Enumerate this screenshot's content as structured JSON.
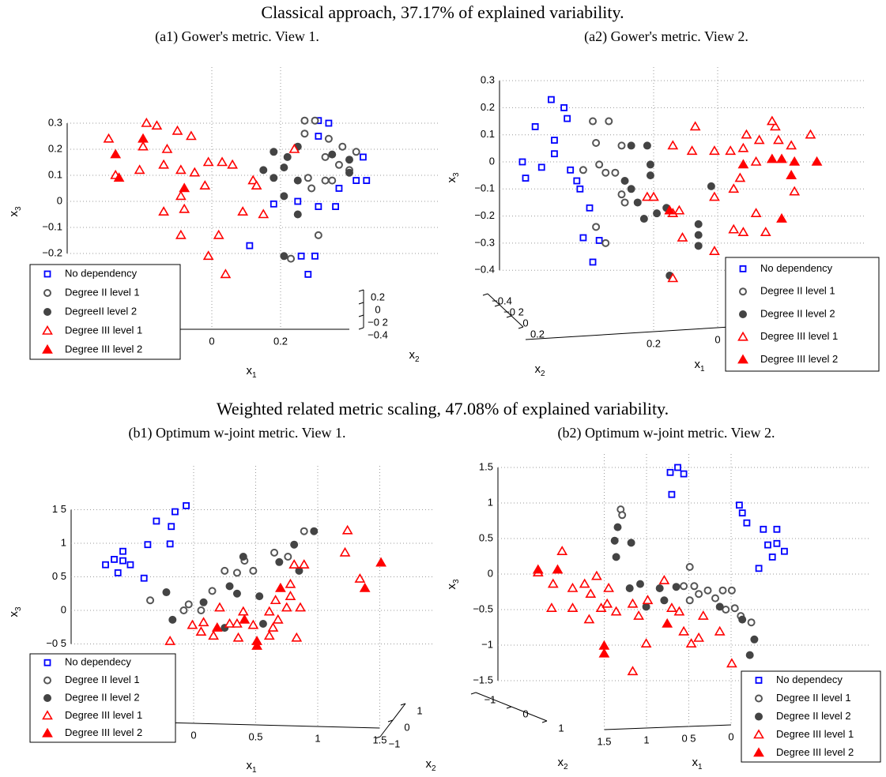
{
  "headings": [
    "Classical approach, 37.17% of explained variability.",
    "Weighted related metric scaling, 47.08% of explained variability."
  ],
  "chart_data": [
    {
      "type": "scatter3d",
      "title": "(a1) Gower's metric. View 1.",
      "xlabel": "x",
      "xlabel_sub": "1",
      "ylabel": "x",
      "ylabel_sub": "2",
      "zlabel": "x",
      "zlabel_sub": "3",
      "xlim": [
        -0.4,
        0.4
      ],
      "ylim": [
        -0.4,
        0.2
      ],
      "zlim": [
        -0.2,
        0.3
      ],
      "xticks": [
        0,
        0.2
      ],
      "yticks": [
        0.2,
        0,
        {
          "value": -0.2,
          "label": "−0 2"
        },
        {
          "value": -0.4,
          "label": "−0.4"
        }
      ],
      "zticks": [
        0.3,
        0.2,
        0.1,
        0,
        {
          "value": -0.1,
          "label": "−0.1"
        },
        {
          "value": -0.2,
          "label": "−0.2"
        }
      ],
      "grid": true,
      "series": [
        {
          "name": "No dependency",
          "color": "#0000ff",
          "marker": "square",
          "filled": false,
          "x": [
            0.31,
            0.34,
            0.31,
            0.44,
            0.45,
            0.42,
            0.37,
            0.25,
            0.18,
            0.31,
            0.36,
            0.11,
            0.26,
            0.3,
            0.28
          ],
          "values": [
            0.31,
            0.3,
            0.25,
            0.17,
            0.08,
            0.08,
            0.05,
            0,
            -0.01,
            -0.02,
            -0.02,
            -0.17,
            -0.21,
            -0.21,
            -0.28
          ]
        },
        {
          "name": "Degree II level 1",
          "color": "#555555",
          "marker": "circle",
          "filled": false,
          "x": [
            0.27,
            0.3,
            0.27,
            0.34,
            0.38,
            0.42,
            0.33,
            0.37,
            0.4,
            0.28,
            0.33,
            0.29,
            0.35,
            0.31,
            0.23
          ],
          "values": [
            0.31,
            0.31,
            0.26,
            0.24,
            0.21,
            0.19,
            0.17,
            0.14,
            0.12,
            0.09,
            0.08,
            0.05,
            0.08,
            -0.13,
            -0.22
          ]
        },
        {
          "name": "DegreeII level 2",
          "color": "#444444",
          "marker": "circle",
          "filled": true,
          "x": [
            0.18,
            0.25,
            0.22,
            0.21,
            0.15,
            0.18,
            0.4,
            0.4,
            0.35,
            0.25,
            0.21,
            0.25,
            0.21
          ],
          "values": [
            0.19,
            0.21,
            0.17,
            0.13,
            0.12,
            0.09,
            0.16,
            0.11,
            0.18,
            0.08,
            0.02,
            -0.05,
            -0.21
          ]
        },
        {
          "name": "Degree III level 1",
          "color": "#ff0000",
          "marker": "triangle",
          "filled": false,
          "x": [
            -0.3,
            -0.19,
            -0.16,
            -0.1,
            -0.06,
            -0.2,
            -0.13,
            -0.01,
            0.03,
            0.06,
            -0.21,
            -0.14,
            -0.09,
            -0.05,
            -0.02,
            0.12,
            0.13,
            0.24,
            -0.09,
            -0.08,
            -0.14,
            -0.09,
            0.02,
            0.09,
            0.15,
            -0.01,
            0.04,
            -0.28
          ],
          "values": [
            0.24,
            0.3,
            0.29,
            0.27,
            0.25,
            0.21,
            0.2,
            0.15,
            0.15,
            0.14,
            0.12,
            0.14,
            0.12,
            0.11,
            0.06,
            0.08,
            0.06,
            0.2,
            0.02,
            -0.03,
            -0.04,
            -0.13,
            -0.13,
            -0.04,
            -0.05,
            -0.21,
            -0.28,
            0.1
          ]
        },
        {
          "name": "Degree III level 2",
          "color": "#ff0000",
          "marker": "triangle",
          "filled": true,
          "x": [
            -0.28,
            -0.2,
            -0.08,
            -0.27
          ],
          "values": [
            0.18,
            0.24,
            0.05,
            0.09
          ]
        }
      ]
    },
    {
      "type": "scatter3d",
      "title": "(a2) Gower's metric. View 2.",
      "xlabel": "x",
      "xlabel_sub": "1",
      "ylabel": "x",
      "ylabel_sub": "2",
      "zlabel": "x",
      "zlabel_sub": "3",
      "xlim": [
        -0.4,
        0.6
      ],
      "ylim": [
        -0.4,
        0.2
      ],
      "zlim": [
        -0.4,
        0.3
      ],
      "xticks": [
        0.2,
        0
      ],
      "yticks": [
        {
          "value": -0.4,
          "label": "−0.4"
        },
        {
          "value": -0.2,
          "label": "−0 2"
        },
        0,
        0.2
      ],
      "zticks": [
        0.3,
        0.2,
        0.1,
        0,
        {
          "value": -0.1,
          "label": "−0.1"
        },
        {
          "value": -0.2,
          "label": "−0.2"
        },
        {
          "value": -0.3,
          "label": "−0.3"
        },
        {
          "value": -0.4,
          "label": "−0.4"
        }
      ],
      "grid": true,
      "series": [
        {
          "name": "No dependency",
          "color": "#0000ff",
          "marker": "square",
          "filled": false,
          "x": [
            0.52,
            0.48,
            0.47,
            0.57,
            0.51,
            0.61,
            0.51,
            0.55,
            0.46,
            0.6,
            0.44,
            0.43,
            0.4,
            0.42,
            0.37,
            0.39
          ],
          "values": [
            0.23,
            0.2,
            0.16,
            0.13,
            0.08,
            0,
            0.03,
            -0.02,
            -0.03,
            -0.06,
            -0.07,
            -0.1,
            -0.17,
            -0.28,
            -0.29,
            -0.37
          ]
        },
        {
          "name": "Degree II level 1",
          "color": "#555555",
          "marker": "circle",
          "filled": false,
          "x": [
            0.39,
            0.34,
            0.38,
            0.37,
            0.35,
            0.42,
            0.3,
            0.32,
            0.3,
            0.29,
            0.38,
            0.35
          ],
          "values": [
            0.15,
            0.15,
            0.07,
            -0.01,
            -0.04,
            -0.03,
            0.06,
            -0.04,
            -0.12,
            -0.15,
            -0.24,
            -0.3
          ]
        },
        {
          "name": "Degree II level 2",
          "color": "#444444",
          "marker": "circle",
          "filled": true,
          "x": [
            0.22,
            0.27,
            0.21,
            0.21,
            0.29,
            0.27,
            0.25,
            0.19,
            0.23,
            0.06,
            0.06,
            0.06,
            0.15,
            0.02,
            0.16
          ],
          "values": [
            0.06,
            0.06,
            -0.01,
            -0.05,
            -0.07,
            -0.1,
            -0.15,
            -0.19,
            -0.21,
            -0.23,
            -0.27,
            -0.31,
            -0.42,
            -0.09,
            -0.17
          ]
        },
        {
          "name": "Degree III level 1",
          "color": "#ff0000",
          "marker": "triangle",
          "filled": false,
          "x": [
            0.14,
            0.08,
            0.07,
            0.01,
            -0.04,
            -0.08,
            -0.09,
            -0.13,
            -0.18,
            -0.19,
            -0.23,
            -0.12,
            -0.07,
            -0.05,
            0.01,
            0.22,
            0.2,
            0.11,
            0.01,
            0.14,
            -0.12,
            -0.05,
            -0.08,
            -0.15,
            -0.24,
            -0.29,
            0.14,
            0.12,
            -0.17
          ],
          "values": [
            0.06,
            0.04,
            0.13,
            0.04,
            0.04,
            0.05,
            0.1,
            0.08,
            0.13,
            0.08,
            0.06,
            0,
            -0.06,
            -0.1,
            -0.13,
            -0.13,
            -0.13,
            -0.28,
            -0.33,
            -0.43,
            -0.19,
            -0.25,
            -0.26,
            -0.26,
            -0.11,
            0.1,
            -0.19,
            -0.18,
            0.15
          ]
        },
        {
          "name": "Degree III level 2",
          "color": "#ff0000",
          "marker": "triangle",
          "filled": true,
          "x": [
            -0.08,
            -0.17,
            -0.2,
            -0.23,
            -0.24,
            -0.2,
            -0.31,
            0.15
          ],
          "values": [
            -0.01,
            0.01,
            0.01,
            -0.05,
            0,
            -0.21,
            0,
            -0.18
          ]
        }
      ]
    },
    {
      "type": "scatter3d",
      "title": "(b1) Optimum w-joint metric. View 1.",
      "xlabel": "x",
      "xlabel_sub": "1",
      "ylabel": "x",
      "ylabel_sub": "2",
      "zlabel": "x",
      "zlabel_sub": "3",
      "xlim": [
        -1,
        1.5
      ],
      "ylim": [
        -1,
        1
      ],
      "zlim": [
        -0.5,
        1.5
      ],
      "xticks": [
        0,
        0.5,
        1,
        1.5
      ],
      "yticks": [
        1,
        0,
        {
          "value": -1,
          "label": "−1"
        }
      ],
      "zticks": [
        {
          "value": 1.5,
          "label": "1 5"
        },
        1,
        {
          "value": 0.5,
          "label": "0 5"
        },
        0,
        {
          "value": -0.5,
          "label": "−0 5"
        }
      ],
      "grid": true,
      "series": [
        {
          "name": "No dependecy",
          "color": "#0000ff",
          "marker": "square",
          "filled": false,
          "x": [
            -0.71,
            -0.64,
            -0.57,
            -0.57,
            -0.51,
            -0.61,
            -0.37,
            -0.4,
            -0.3,
            -0.18,
            -0.19,
            -0.15,
            -0.06
          ],
          "values": [
            0.68,
            0.76,
            0.88,
            0.74,
            0.68,
            0.56,
            0.98,
            0.48,
            1.33,
            1.25,
            0.99,
            1.47,
            1.56
          ]
        },
        {
          "name": "Degree II level 1",
          "color": "#555555",
          "marker": "circle",
          "filled": false,
          "x": [
            -0.35,
            -0.08,
            -0.04,
            0.06,
            0.15,
            0.25,
            0.35,
            0.41,
            0.48,
            0.65,
            0.89,
            0.76
          ],
          "values": [
            0.15,
            0,
            0.09,
            0,
            0.29,
            0.59,
            0.56,
            0.74,
            0.59,
            0.86,
            1.18,
            0.8
          ]
        },
        {
          "name": "Degree II level 2",
          "color": "#444444",
          "marker": "circle",
          "filled": true,
          "x": [
            -0.22,
            -0.17,
            0.08,
            0.29,
            0.35,
            0.4,
            0.53,
            0.56,
            0.69,
            0.81,
            0.85,
            0.97,
            0.25
          ],
          "values": [
            0.27,
            -0.14,
            0.12,
            0.36,
            0.25,
            0.8,
            0.21,
            -0.2,
            0.72,
            0.98,
            0.59,
            1.18,
            -0.26
          ]
        },
        {
          "name": "Degree III level 1",
          "color": "#ff0000",
          "marker": "triangle",
          "filled": false,
          "x": [
            -0.19,
            -0.01,
            0.08,
            0.21,
            0.29,
            0.35,
            0.4,
            0.48,
            0.61,
            0.64,
            0.66,
            0.68,
            0.61,
            0.75,
            0.78,
            0.78,
            0.81,
            0.89,
            0.86,
            0.83,
            0.36,
            0.16,
            0.06,
            1.24,
            1.22,
            1.34
          ],
          "values": [
            -0.46,
            -0.22,
            -0.18,
            0.04,
            -0.2,
            -0.2,
            -0.02,
            -0.22,
            -0.02,
            -0.26,
            0.15,
            -0.14,
            -0.38,
            0.04,
            0.21,
            0.39,
            0.68,
            0.68,
            0.04,
            -0.41,
            -0.41,
            -0.38,
            -0.32,
            1.19,
            0.86,
            0.47
          ]
        },
        {
          "name": "Degree III level 2",
          "color": "#ff0000",
          "marker": "triangle",
          "filled": true,
          "x": [
            0.19,
            0.41,
            0.51,
            0.51,
            1.51,
            1.38,
            0.7
          ],
          "values": [
            -0.26,
            -0.14,
            -0.53,
            -0.46,
            0.71,
            0.33,
            0.33
          ]
        }
      ]
    },
    {
      "type": "scatter3d",
      "title": "(b2) Optimum w-joint metric. View 2.",
      "xlabel": "x",
      "xlabel_sub": "1",
      "ylabel": "x",
      "ylabel_sub": "2",
      "zlabel": "x",
      "zlabel_sub": "3",
      "xlim": [
        0,
        1.5
      ],
      "ylim": [
        -1,
        1
      ],
      "zlim": [
        -1.5,
        1.5
      ],
      "xticks": [
        1.5,
        1,
        {
          "value": 0.5,
          "label": "0 5"
        },
        0
      ],
      "yticks": [
        {
          "value": -1,
          "label": "−1"
        },
        0,
        1
      ],
      "zticks": [
        1.5,
        1,
        0.5,
        0,
        {
          "value": -0.5,
          "label": "−0.5"
        },
        {
          "value": -1,
          "label": "−1"
        },
        {
          "value": -1.5,
          "label": "−1.5"
        }
      ],
      "grid": true,
      "series": [
        {
          "name": "No dependecy",
          "color": "#0000ff",
          "marker": "square",
          "filled": false,
          "x": [
            0.8,
            0.75,
            0.71,
            0.79,
            0.34,
            0.32,
            0.29,
            0.18,
            0.09,
            0.15,
            0.09,
            0.04,
            0.12,
            0.21
          ],
          "values": [
            1.43,
            1.5,
            1.41,
            1.12,
            0.97,
            0.86,
            0.72,
            0.63,
            0.63,
            0.41,
            0.43,
            0.32,
            0.24,
            0.08
          ]
        },
        {
          "name": "Degree II level 1",
          "color": "#555555",
          "marker": "circle",
          "filled": false,
          "x": [
            1.13,
            1.12,
            0.67,
            0.71,
            0.64,
            0.55,
            0.61,
            0.5,
            0.45,
            0.39,
            0.43,
            0.37,
            0.33,
            0.26,
            0.67
          ],
          "values": [
            0.91,
            0.83,
            0.1,
            -0.17,
            -0.17,
            -0.23,
            -0.28,
            -0.34,
            -0.23,
            -0.23,
            -0.5,
            -0.48,
            -0.59,
            -0.68,
            -0.37
          ]
        },
        {
          "name": "Degree II level 2",
          "color": "#444444",
          "marker": "circle",
          "filled": true,
          "x": [
            1.17,
            1.15,
            1.06,
            1.16,
            1.07,
            1.0,
            0.87,
            0.84,
            0.76,
            0.96,
            0.47,
            0.32,
            0.24,
            0.27
          ],
          "values": [
            0.47,
            0.66,
            0.44,
            0.24,
            -0.2,
            -0.14,
            -0.2,
            -0.37,
            -0.18,
            -0.46,
            -0.46,
            -0.64,
            -0.92,
            -1.14
          ]
        },
        {
          "name": "Degree III level 1",
          "color": "#ff0000",
          "marker": "triangle",
          "filled": false,
          "x": [
            1.68,
            1.52,
            1.58,
            1.45,
            1.37,
            1.29,
            1.33,
            1.21,
            1.26,
            1.16,
            1.05,
            1.01,
            0.95,
            0.84,
            0.74,
            0.71,
            0.66,
            0.61,
            0.58,
            0.47,
            0.39,
            0.79,
            1.45,
            1.34,
            1.59,
            0.96,
            1.22,
            1.05
          ],
          "values": [
            0.02,
            0.32,
            -0.14,
            -0.2,
            -0.14,
            -0.03,
            -0.28,
            -0.2,
            -0.48,
            -0.53,
            -0.42,
            -0.59,
            -0.37,
            -0.09,
            -0.53,
            -0.81,
            -0.98,
            -0.9,
            -0.59,
            -0.81,
            -1.26,
            -0.48,
            -0.48,
            -0.64,
            -0.48,
            -0.98,
            -0.42,
            -1.37
          ]
        },
        {
          "name": "Degree III level 2",
          "color": "#ff0000",
          "marker": "triangle",
          "filled": true,
          "x": [
            1.68,
            1.55,
            1.24,
            1.24,
            0.82
          ],
          "values": [
            0.06,
            0.06,
            -1.01,
            -1.12,
            -0.7
          ]
        }
      ]
    }
  ]
}
